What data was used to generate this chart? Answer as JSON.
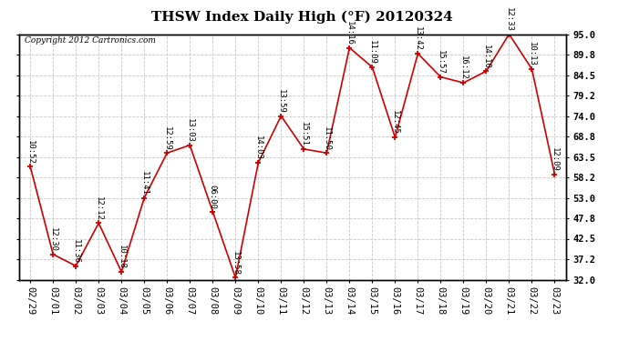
{
  "title": "THSW Index Daily High (°F) 20120324",
  "copyright": "Copyright 2012 Cartronics.com",
  "ylabel_right_ticks": [
    32.0,
    37.2,
    42.5,
    47.8,
    53.0,
    58.2,
    63.5,
    68.8,
    74.0,
    79.2,
    84.5,
    89.8,
    95.0
  ],
  "dates": [
    "02/29",
    "03/01",
    "03/02",
    "03/03",
    "03/04",
    "03/05",
    "03/06",
    "03/07",
    "03/08",
    "03/09",
    "03/10",
    "03/11",
    "03/12",
    "03/13",
    "03/14",
    "03/15",
    "03/16",
    "03/17",
    "03/18",
    "03/19",
    "03/20",
    "03/21",
    "03/22",
    "03/23"
  ],
  "values": [
    61.0,
    38.5,
    35.5,
    46.5,
    34.0,
    53.0,
    64.5,
    66.5,
    49.5,
    32.5,
    62.0,
    74.0,
    65.5,
    64.5,
    91.5,
    86.5,
    68.5,
    90.0,
    84.0,
    82.5,
    85.5,
    95.0,
    86.0,
    59.0
  ],
  "time_labels": [
    "10:52",
    "12:30",
    "11:36",
    "12:12",
    "10:18",
    "11:41",
    "12:59",
    "13:03",
    "06:00",
    "13:58",
    "14:03",
    "13:59",
    "15:51",
    "11:50",
    "14:16",
    "11:09",
    "12:45",
    "13:42",
    "15:57",
    "16:12",
    "14:10",
    "12:33",
    "10:13",
    "12:09"
  ],
  "line_color": "#cc0000",
  "marker_color": "#cc0000",
  "bg_color": "#ffffff",
  "grid_color": "#c8c8c8",
  "title_fontsize": 11,
  "label_fontsize": 6.5,
  "tick_fontsize": 7.5,
  "copyright_fontsize": 6.5
}
